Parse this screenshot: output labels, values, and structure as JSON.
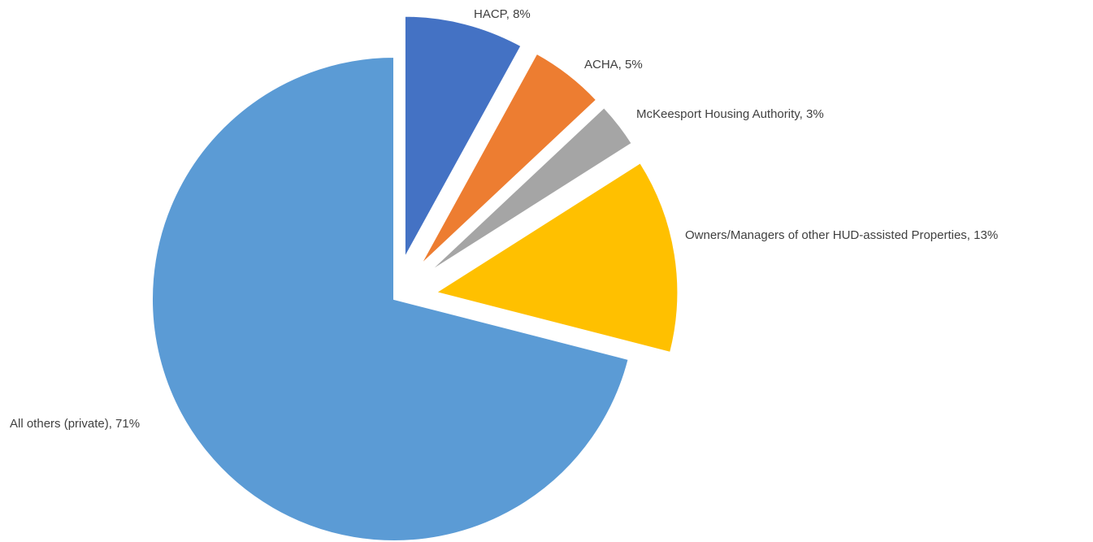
{
  "chart_data": {
    "type": "pie",
    "values": [
      8,
      5,
      3,
      13,
      71
    ],
    "value_labels": [
      "HACP, 8%",
      "ACHA, 5%",
      "McKeesport Housing Authority, 3%",
      "Owners/Managers of other HUD-assisted Properties, 13%",
      "All others (private), 71%"
    ],
    "colors": [
      "#4472c4",
      "#ed7d31",
      "#a5a5a5",
      "#ffc000",
      "#5b9bd5"
    ],
    "exploded": [
      true,
      true,
      true,
      true,
      false
    ]
  }
}
